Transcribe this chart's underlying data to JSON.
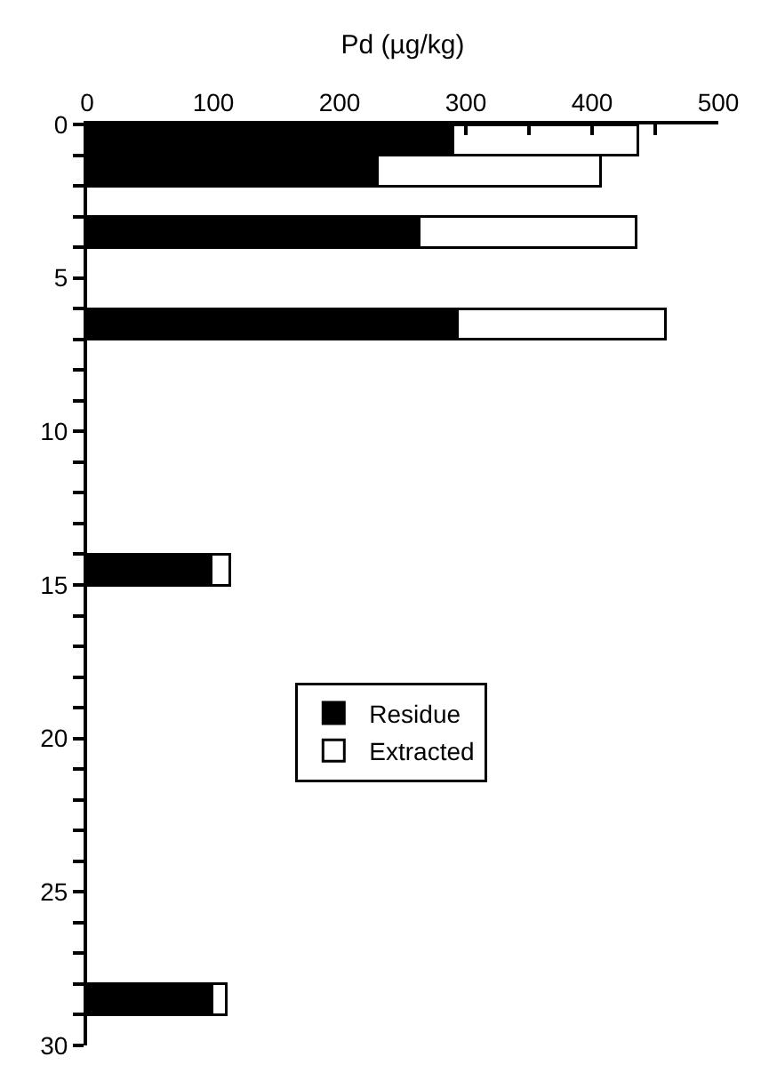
{
  "chart_data": {
    "type": "bar",
    "orientation": "horizontal",
    "stacked": true,
    "xlabel": "Pd (µg/kg)",
    "x": [
      0.5,
      1.5,
      3.5,
      6.5,
      14.5,
      28.5
    ],
    "series": [
      {
        "name": "Residue",
        "color": "#000000",
        "values": [
          290,
          230,
          263,
          293,
          98,
          99
        ]
      },
      {
        "name": "Extracted",
        "color": "#ffffff",
        "values": [
          146,
          177,
          172,
          165,
          15,
          11
        ]
      }
    ],
    "xlim": [
      0,
      500
    ],
    "xticks": [
      0,
      {
        "value": 50,
        "label": null
      },
      100,
      {
        "value": 150,
        "label": null
      },
      200,
      {
        "value": 250,
        "label": null
      },
      300,
      {
        "value": 350,
        "label": null
      },
      400,
      {
        "value": 450,
        "label": null
      },
      500
    ],
    "ylim": [
      30,
      0
    ],
    "yticks": [
      0,
      {
        "value": 1,
        "label": null
      },
      {
        "value": 2,
        "label": null
      },
      {
        "value": 3,
        "label": null
      },
      {
        "value": 4,
        "label": null
      },
      5,
      {
        "value": 6,
        "label": null
      },
      {
        "value": 7,
        "label": null
      },
      {
        "value": 8,
        "label": null
      },
      {
        "value": 9,
        "label": null
      },
      10,
      {
        "value": 11,
        "label": null
      },
      {
        "value": 12,
        "label": null
      },
      {
        "value": 13,
        "label": null
      },
      {
        "value": 14,
        "label": null
      },
      15,
      {
        "value": 16,
        "label": null
      },
      {
        "value": 17,
        "label": null
      },
      {
        "value": 18,
        "label": null
      },
      {
        "value": 19,
        "label": null
      },
      20,
      {
        "value": 21,
        "label": null
      },
      {
        "value": 22,
        "label": null
      },
      {
        "value": 23,
        "label": null
      },
      {
        "value": 24,
        "label": null
      },
      25,
      {
        "value": 26,
        "label": null
      },
      {
        "value": 27,
        "label": null
      },
      {
        "value": 28,
        "label": null
      },
      {
        "value": 29,
        "label": null
      },
      30
    ],
    "legend": "center right"
  }
}
